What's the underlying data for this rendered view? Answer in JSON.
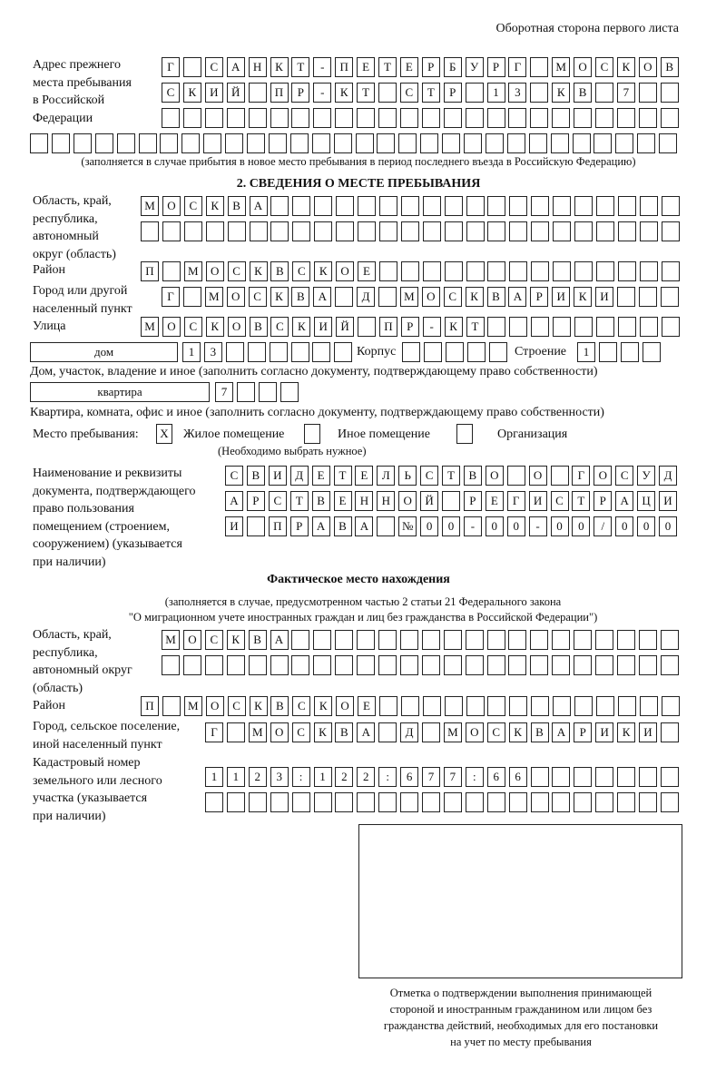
{
  "header": "Оборотная сторона первого листа",
  "prev_address": {
    "label": "Адрес прежнего\nместа пребывания\nв Российской\nФедерации",
    "row1": [
      "Г",
      "",
      "С",
      "А",
      "Н",
      "К",
      "Т",
      "-",
      "П",
      "Е",
      "Т",
      "Е",
      "Р",
      "Б",
      "У",
      "Р",
      "Г",
      "",
      "М",
      "О",
      "С",
      "К",
      "О",
      "В"
    ],
    "row2": [
      "С",
      "К",
      "И",
      "Й",
      "",
      "П",
      "Р",
      "-",
      "К",
      "Т",
      "",
      "С",
      "Т",
      "Р",
      "",
      "1",
      "3",
      "",
      "К",
      "В",
      "",
      "7",
      "",
      ""
    ],
    "row3": [
      "",
      "",
      "",
      "",
      "",
      "",
      "",
      "",
      "",
      "",
      "",
      "",
      "",
      "",
      "",
      "",
      "",
      "",
      "",
      "",
      "",
      "",
      "",
      ""
    ],
    "row4": [
      "",
      "",
      "",
      "",
      "",
      "",
      "",
      "",
      "",
      "",
      "",
      "",
      "",
      "",
      "",
      "",
      "",
      "",
      "",
      "",
      "",
      "",
      "",
      "",
      "",
      "",
      "",
      "",
      "",
      ""
    ],
    "note": "(заполняется в случае прибытия в новое место пребывания в период последнего въезда в Российскую Федерацию)"
  },
  "section2": {
    "title": "2. СВЕДЕНИЯ О МЕСТЕ ПРЕБЫВАНИЯ",
    "region_label": "Область, край,\nреспублика,\nавтономный\nокруг (область)",
    "region_row1": [
      "М",
      "О",
      "С",
      "К",
      "В",
      "А",
      "",
      "",
      "",
      "",
      "",
      "",
      "",
      "",
      "",
      "",
      "",
      "",
      "",
      "",
      "",
      "",
      "",
      "",
      ""
    ],
    "region_row2": [
      "",
      "",
      "",
      "",
      "",
      "",
      "",
      "",
      "",
      "",
      "",
      "",
      "",
      "",
      "",
      "",
      "",
      "",
      "",
      "",
      "",
      "",
      "",
      "",
      ""
    ],
    "district_label": "Район",
    "district": [
      "П",
      "",
      "М",
      "О",
      "С",
      "К",
      "В",
      "С",
      "К",
      "О",
      "Е",
      "",
      "",
      "",
      "",
      "",
      "",
      "",
      "",
      "",
      "",
      "",
      "",
      "",
      ""
    ],
    "city_label": "Город или другой\nнаселенный пункт",
    "city": [
      "Г",
      "",
      "М",
      "О",
      "С",
      "К",
      "В",
      "А",
      "",
      "Д",
      "",
      "М",
      "О",
      "С",
      "К",
      "В",
      "А",
      "Р",
      "И",
      "К",
      "И",
      "",
      "",
      ""
    ],
    "street_label": "Улица",
    "street": [
      "М",
      "О",
      "С",
      "К",
      "О",
      "В",
      "С",
      "К",
      "И",
      "Й",
      "",
      "П",
      "Р",
      "-",
      "К",
      "Т",
      "",
      "",
      "",
      "",
      "",
      "",
      "",
      "",
      ""
    ],
    "house_type": "дом",
    "house": [
      "1",
      "3",
      "",
      "",
      "",
      "",
      "",
      ""
    ],
    "korpus_label": "Корпус",
    "korpus": [
      "",
      "",
      "",
      "",
      ""
    ],
    "building_label": "Строение",
    "building": [
      "1",
      "",
      "",
      ""
    ],
    "house_note": "Дом, участок, владение и иное (заполнить согласно документу, подтверждающему право собственности)",
    "flat_type": "квартира",
    "flat": [
      "7",
      "",
      "",
      ""
    ],
    "flat_note": "Квартира, комната, офис и иное (заполнить согласно документу, подтверждающему право собственности)",
    "stay_label": "Место пребывания:",
    "stay_options": [
      {
        "label": "Жилое помещение",
        "mark": "X"
      },
      {
        "label": "Иное помещение",
        "mark": ""
      },
      {
        "label": "Организация",
        "mark": ""
      }
    ],
    "stay_note": "(Необходимо выбрать нужное)",
    "doc_label": "Наименование и реквизиты\nдокумента, подтверждающего\nправо пользования\nпомещением (строением,\nсооружением) (указывается\nпри наличии)",
    "doc_row1": [
      "С",
      "В",
      "И",
      "Д",
      "Е",
      "Т",
      "Е",
      "Л",
      "Ь",
      "С",
      "Т",
      "В",
      "О",
      "",
      "О",
      "",
      "Г",
      "О",
      "С",
      "У",
      "Д"
    ],
    "doc_row2": [
      "А",
      "Р",
      "С",
      "Т",
      "В",
      "Е",
      "Н",
      "Н",
      "О",
      "Й",
      "",
      "Р",
      "Е",
      "Г",
      "И",
      "С",
      "Т",
      "Р",
      "А",
      "Ц",
      "И"
    ],
    "doc_row3": [
      "И",
      "",
      "П",
      "Р",
      "А",
      "В",
      "А",
      "",
      "№",
      "0",
      "0",
      "-",
      "0",
      "0",
      "-",
      "0",
      "0",
      "/",
      "0",
      "0",
      "0"
    ]
  },
  "actual": {
    "title": "Фактическое место нахождения",
    "note1": "(заполняется в случае, предусмотренном частью 2 статьи 21 Федерального закона",
    "note2": "\"О миграционном учете иностранных граждан и лиц без гражданства в Российской Федерации\")",
    "region_label": "Область, край,\nреспублика,\nавтономный округ\n(область)",
    "region_row1": [
      "М",
      "О",
      "С",
      "К",
      "В",
      "А",
      "",
      "",
      "",
      "",
      "",
      "",
      "",
      "",
      "",
      "",
      "",
      "",
      "",
      "",
      "",
      "",
      "",
      ""
    ],
    "region_row2": [
      "",
      "",
      "",
      "",
      "",
      "",
      "",
      "",
      "",
      "",
      "",
      "",
      "",
      "",
      "",
      "",
      "",
      "",
      "",
      "",
      "",
      "",
      "",
      ""
    ],
    "district_label": "Район",
    "district": [
      "П",
      "",
      "М",
      "О",
      "С",
      "К",
      "В",
      "С",
      "К",
      "О",
      "Е",
      "",
      "",
      "",
      "",
      "",
      "",
      "",
      "",
      "",
      "",
      "",
      "",
      "",
      ""
    ],
    "city_label": "Город, сельское поселение,\nиной населенный пункт",
    "city": [
      "Г",
      "",
      "М",
      "О",
      "С",
      "К",
      "В",
      "А",
      "",
      "Д",
      "",
      "М",
      "О",
      "С",
      "К",
      "В",
      "А",
      "Р",
      "И",
      "К",
      "И",
      ""
    ],
    "cadastral_label": "Кадастровый номер\nземельного или лесного\nучастка (указывается\nпри наличии)",
    "cadastral_row1": [
      "1",
      "1",
      "2",
      "3",
      ":",
      "1",
      "2",
      "2",
      ":",
      "6",
      "7",
      "7",
      ":",
      "6",
      "6",
      "",
      "",
      "",
      "",
      "",
      "",
      ""
    ],
    "cadastral_row2": [
      "",
      "",
      "",
      "",
      "",
      "",
      "",
      "",
      "",
      "",
      "",
      "",
      "",
      "",
      "",
      "",
      "",
      "",
      "",
      "",
      "",
      ""
    ]
  },
  "stamp_caption": "Отметка о подтверждении выполнения принимающей\nстороной и иностранным гражданином или лицом без\nгражданства действий, необходимых для его постановки\nна учет по месту пребывания"
}
